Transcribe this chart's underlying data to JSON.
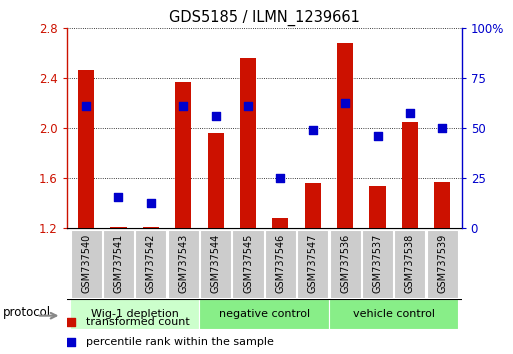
{
  "title": "GDS5185 / ILMN_1239661",
  "samples": [
    "GSM737540",
    "GSM737541",
    "GSM737542",
    "GSM737543",
    "GSM737544",
    "GSM737545",
    "GSM737546",
    "GSM737547",
    "GSM737536",
    "GSM737537",
    "GSM737538",
    "GSM737539"
  ],
  "red_values": [
    2.47,
    1.21,
    1.21,
    2.37,
    1.96,
    2.56,
    1.28,
    1.56,
    2.68,
    1.54,
    2.05,
    1.57
  ],
  "blue_values": [
    2.18,
    1.45,
    1.4,
    2.18,
    2.1,
    2.18,
    1.6,
    1.99,
    2.2,
    1.94,
    2.12,
    2.0
  ],
  "ylim_left": [
    1.2,
    2.8
  ],
  "ylim_right": [
    0,
    100
  ],
  "yticks_left": [
    1.2,
    1.6,
    2.0,
    2.4,
    2.8
  ],
  "yticks_right": [
    0,
    25,
    50,
    75,
    100
  ],
  "ytick_labels_right": [
    "0",
    "25",
    "50",
    "75",
    "100%"
  ],
  "bar_color": "#cc1100",
  "dot_color": "#0000cc",
  "bar_bottom": 1.2,
  "groups": [
    {
      "label": "Wig-1 depletion",
      "start": 0,
      "end": 3
    },
    {
      "label": "negative control",
      "start": 4,
      "end": 7
    },
    {
      "label": "vehicle control",
      "start": 8,
      "end": 11
    }
  ],
  "group_colors": [
    "#ccffcc",
    "#aaffaa",
    "#aaffaa"
  ],
  "protocol_label": "protocol",
  "legend_red": "transformed count",
  "legend_blue": "percentile rank within the sample",
  "grid_color": "black",
  "bar_width": 0.5,
  "dot_size": 40,
  "xlabel_bg": "#cccccc",
  "fig_bg": "#ffffff"
}
